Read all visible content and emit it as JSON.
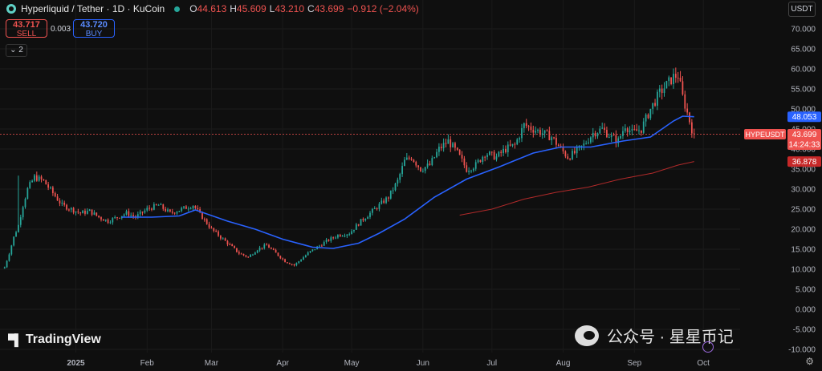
{
  "header": {
    "title": "Hyperliquid / Tether · 1D · KuCoin",
    "open_label": "O",
    "open": "44.613",
    "high_label": "H",
    "high": "45.609",
    "low_label": "L",
    "low": "43.210",
    "close_label": "C",
    "close": "43.699",
    "change": "−0.912 (−2.04%)"
  },
  "trade": {
    "sell_price": "43.717",
    "sell_label": "SELL",
    "spread": "0.003",
    "buy_price": "43.720",
    "buy_label": "BUY"
  },
  "indicators_toggle": "2",
  "currency_button": "USDT",
  "brand": "TradingView",
  "watermark": "公众号 · 星星币记",
  "colors": {
    "up": "#26a69a",
    "down": "#ef5350",
    "ma_fast": "#2962ff",
    "ma_slow": "#b02a2a",
    "background": "#0f0f0f"
  },
  "chart_data": {
    "type": "candlestick",
    "symbol_label": "HYPEUSDT",
    "price_tags": {
      "ma_fast": 48.053,
      "last": 43.699,
      "countdown": "14:24:33",
      "ma_slow": 36.878
    },
    "y_ticks": [
      70,
      65,
      60,
      55,
      50,
      45,
      40,
      35,
      30,
      25,
      20,
      15,
      10,
      5,
      0,
      -5,
      -10
    ],
    "y_tick_labels": [
      "70.000",
      "65.000",
      "60.000",
      "55.000",
      "50.000",
      "45.000",
      "40.000",
      "35.000",
      "30.000",
      "25.000",
      "20.000",
      "15.000",
      "10.000",
      "5.000",
      "0.000",
      "-5.000",
      "-10.000"
    ],
    "ylim": [
      -10,
      70
    ],
    "x_ticks": [
      {
        "label": "2025",
        "date": "2025-01-01"
      },
      {
        "label": "Feb",
        "date": "2025-02-01"
      },
      {
        "label": "Mar",
        "date": "2025-03-01"
      },
      {
        "label": "Apr",
        "date": "2025-04-01"
      },
      {
        "label": "May",
        "date": "2025-05-01"
      },
      {
        "label": "Jun",
        "date": "2025-06-01"
      },
      {
        "label": "Jul",
        "date": "2025-07-01"
      },
      {
        "label": "Aug",
        "date": "2025-08-01"
      },
      {
        "label": "Sep",
        "date": "2025-09-01"
      },
      {
        "label": "Oct",
        "date": "2025-10-01"
      }
    ],
    "x_range": [
      "2024-11-29",
      "2025-10-17"
    ],
    "close_path": [
      [
        "2024-12-01",
        10.5
      ],
      [
        "2024-12-03",
        14
      ],
      [
        "2024-12-05",
        18
      ],
      [
        "2024-12-07",
        21
      ],
      [
        "2024-12-09",
        26
      ],
      [
        "2024-12-11",
        30
      ],
      [
        "2024-12-14",
        33
      ],
      [
        "2024-12-18",
        32
      ],
      [
        "2024-12-22",
        29
      ],
      [
        "2024-12-26",
        26
      ],
      [
        "2024-12-30",
        25
      ],
      [
        "2025-01-03",
        24
      ],
      [
        "2025-01-07",
        24.5
      ],
      [
        "2025-01-11",
        23
      ],
      [
        "2025-01-15",
        22
      ],
      [
        "2025-01-19",
        23
      ],
      [
        "2025-01-23",
        24
      ],
      [
        "2025-01-27",
        23
      ],
      [
        "2025-02-01",
        25
      ],
      [
        "2025-02-06",
        26
      ],
      [
        "2025-02-11",
        24
      ],
      [
        "2025-02-16",
        25
      ],
      [
        "2025-02-21",
        26
      ],
      [
        "2025-02-25",
        23
      ],
      [
        "2025-03-01",
        20
      ],
      [
        "2025-03-05",
        18
      ],
      [
        "2025-03-09",
        16
      ],
      [
        "2025-03-13",
        14
      ],
      [
        "2025-03-17",
        13
      ],
      [
        "2025-03-21",
        15
      ],
      [
        "2025-03-25",
        16
      ],
      [
        "2025-03-29",
        14
      ],
      [
        "2025-04-02",
        12
      ],
      [
        "2025-04-06",
        11
      ],
      [
        "2025-04-09",
        12.5
      ],
      [
        "2025-04-12",
        14
      ],
      [
        "2025-04-16",
        15.5
      ],
      [
        "2025-04-20",
        17
      ],
      [
        "2025-04-25",
        18.5
      ],
      [
        "2025-04-30",
        19
      ],
      [
        "2025-05-05",
        22
      ],
      [
        "2025-05-09",
        24
      ],
      [
        "2025-05-13",
        26
      ],
      [
        "2025-05-17",
        28
      ],
      [
        "2025-05-21",
        32
      ],
      [
        "2025-05-24",
        37
      ],
      [
        "2025-05-27",
        38
      ],
      [
        "2025-05-31",
        35
      ],
      [
        "2025-06-04",
        36
      ],
      [
        "2025-06-08",
        40
      ],
      [
        "2025-06-12",
        42
      ],
      [
        "2025-06-16",
        39
      ],
      [
        "2025-06-20",
        35
      ],
      [
        "2025-06-24",
        36
      ],
      [
        "2025-06-28",
        39
      ],
      [
        "2025-07-03",
        38
      ],
      [
        "2025-07-07",
        40
      ],
      [
        "2025-07-11",
        41
      ],
      [
        "2025-07-15",
        46
      ],
      [
        "2025-07-19",
        45
      ],
      [
        "2025-07-23",
        44
      ],
      [
        "2025-07-27",
        43
      ],
      [
        "2025-07-31",
        40
      ],
      [
        "2025-08-03",
        38
      ],
      [
        "2025-08-06",
        39
      ],
      [
        "2025-08-10",
        41
      ],
      [
        "2025-08-14",
        44
      ],
      [
        "2025-08-18",
        45
      ],
      [
        "2025-08-22",
        43
      ],
      [
        "2025-08-25",
        42
      ],
      [
        "2025-08-28",
        46
      ],
      [
        "2025-08-31",
        44
      ],
      [
        "2025-09-04",
        45
      ],
      [
        "2025-09-08",
        50
      ],
      [
        "2025-09-12",
        54
      ],
      [
        "2025-09-15",
        56
      ],
      [
        "2025-09-18",
        58
      ],
      [
        "2025-09-20",
        58.5
      ],
      [
        "2025-09-22",
        53
      ],
      [
        "2025-09-24",
        49
      ],
      [
        "2025-09-26",
        45
      ],
      [
        "2025-09-27",
        43.699
      ]
    ],
    "ma_fast_path": [
      [
        "2025-01-21",
        23
      ],
      [
        "2025-02-03",
        23
      ],
      [
        "2025-02-15",
        23.3
      ],
      [
        "2025-02-22",
        24.8
      ],
      [
        "2025-03-08",
        22
      ],
      [
        "2025-03-20",
        20
      ],
      [
        "2025-04-01",
        17.5
      ],
      [
        "2025-04-14",
        15.5
      ],
      [
        "2025-04-23",
        15.2
      ],
      [
        "2025-05-04",
        16.5
      ],
      [
        "2025-05-13",
        19
      ],
      [
        "2025-05-24",
        22.5
      ],
      [
        "2025-06-06",
        28
      ],
      [
        "2025-06-20",
        32.5
      ],
      [
        "2025-07-04",
        35.5
      ],
      [
        "2025-07-19",
        39
      ],
      [
        "2025-07-31",
        40.5
      ],
      [
        "2025-08-13",
        40.5
      ],
      [
        "2025-08-27",
        42
      ],
      [
        "2025-09-08",
        43
      ],
      [
        "2025-09-18",
        47
      ],
      [
        "2025-09-22",
        48.2
      ],
      [
        "2025-09-27",
        48.053
      ]
    ],
    "ma_slow_path": [
      [
        "2025-06-17",
        23.5
      ],
      [
        "2025-07-01",
        25
      ],
      [
        "2025-07-15",
        27.5
      ],
      [
        "2025-07-29",
        29.2
      ],
      [
        "2025-08-12",
        30.5
      ],
      [
        "2025-08-26",
        32.5
      ],
      [
        "2025-09-09",
        34
      ],
      [
        "2025-09-20",
        36
      ],
      [
        "2025-09-27",
        36.878
      ]
    ]
  }
}
